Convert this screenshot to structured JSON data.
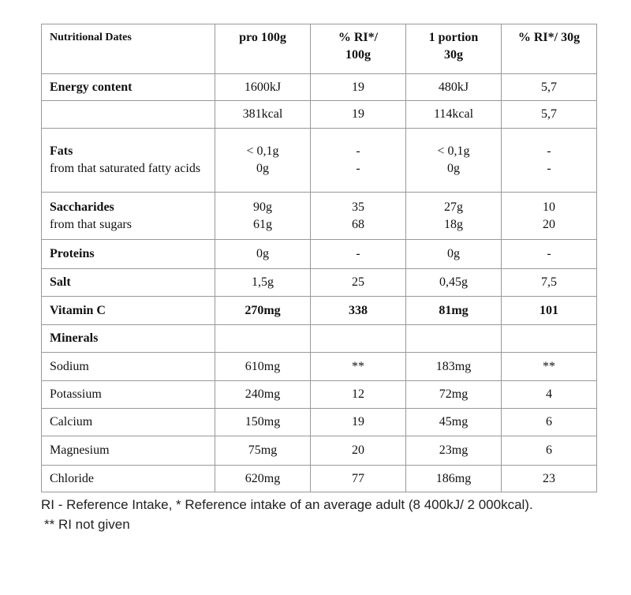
{
  "table": {
    "header": [
      [
        "Nutritional Dates"
      ],
      [
        "pro 100g"
      ],
      [
        "% RI*/",
        "100g"
      ],
      [
        "1 portion",
        "30g"
      ],
      [
        "% RI*/ 30g"
      ]
    ],
    "rows": [
      [
        [
          "Energy content"
        ],
        [
          "1600kJ"
        ],
        [
          "19"
        ],
        [
          "480kJ"
        ],
        [
          "5,7"
        ]
      ],
      [
        [],
        [
          "381kcal"
        ],
        [
          "19"
        ],
        [
          "114kcal"
        ],
        [
          "5,7"
        ]
      ],
      [
        [
          "Fats",
          "from that saturated fatty acids"
        ],
        [
          "< 0,1g",
          "0g"
        ],
        [
          "-",
          "-"
        ],
        [
          "< 0,1g",
          "0g"
        ],
        [
          "-",
          "-"
        ]
      ],
      [
        [
          "Saccharides",
          "from that sugars"
        ],
        [
          "90g",
          "61g"
        ],
        [
          "35",
          "68"
        ],
        [
          "27g",
          "18g"
        ],
        [
          "10",
          "20"
        ]
      ],
      [
        [
          "Proteins"
        ],
        [
          "0g"
        ],
        [
          "-"
        ],
        [
          "0g"
        ],
        [
          "-"
        ]
      ],
      [
        [
          "Salt"
        ],
        [
          "1,5g"
        ],
        [
          "25"
        ],
        [
          "0,45g"
        ],
        [
          "7,5"
        ]
      ],
      [
        [
          "Vitamin C"
        ],
        [
          "270mg"
        ],
        [
          "338"
        ],
        [
          "81mg"
        ],
        [
          "101"
        ]
      ],
      [
        [
          "Minerals"
        ],
        [],
        [],
        [],
        []
      ],
      [
        [
          "Sodium"
        ],
        [
          "610mg"
        ],
        [
          "**"
        ],
        [
          "183mg"
        ],
        [
          "**"
        ]
      ],
      [
        [
          "Potassium"
        ],
        [
          "240mg"
        ],
        [
          "12"
        ],
        [
          "72mg"
        ],
        [
          "4"
        ]
      ],
      [
        [
          "Calcium"
        ],
        [
          "150mg"
        ],
        [
          "19"
        ],
        [
          "45mg"
        ],
        [
          "6"
        ]
      ],
      [
        [
          "Magnesium"
        ],
        [
          "75mg"
        ],
        [
          "20"
        ],
        [
          "23mg"
        ],
        [
          "6"
        ]
      ],
      [
        [
          "Chloride"
        ],
        [
          "620mg"
        ],
        [
          "77"
        ],
        [
          "186mg"
        ],
        [
          "23"
        ]
      ]
    ]
  },
  "footnotes": [
    "RI - Reference Intake, * Reference intake of an average adult (8 400kJ/ 2 000kcal).",
    "** RI not given"
  ]
}
